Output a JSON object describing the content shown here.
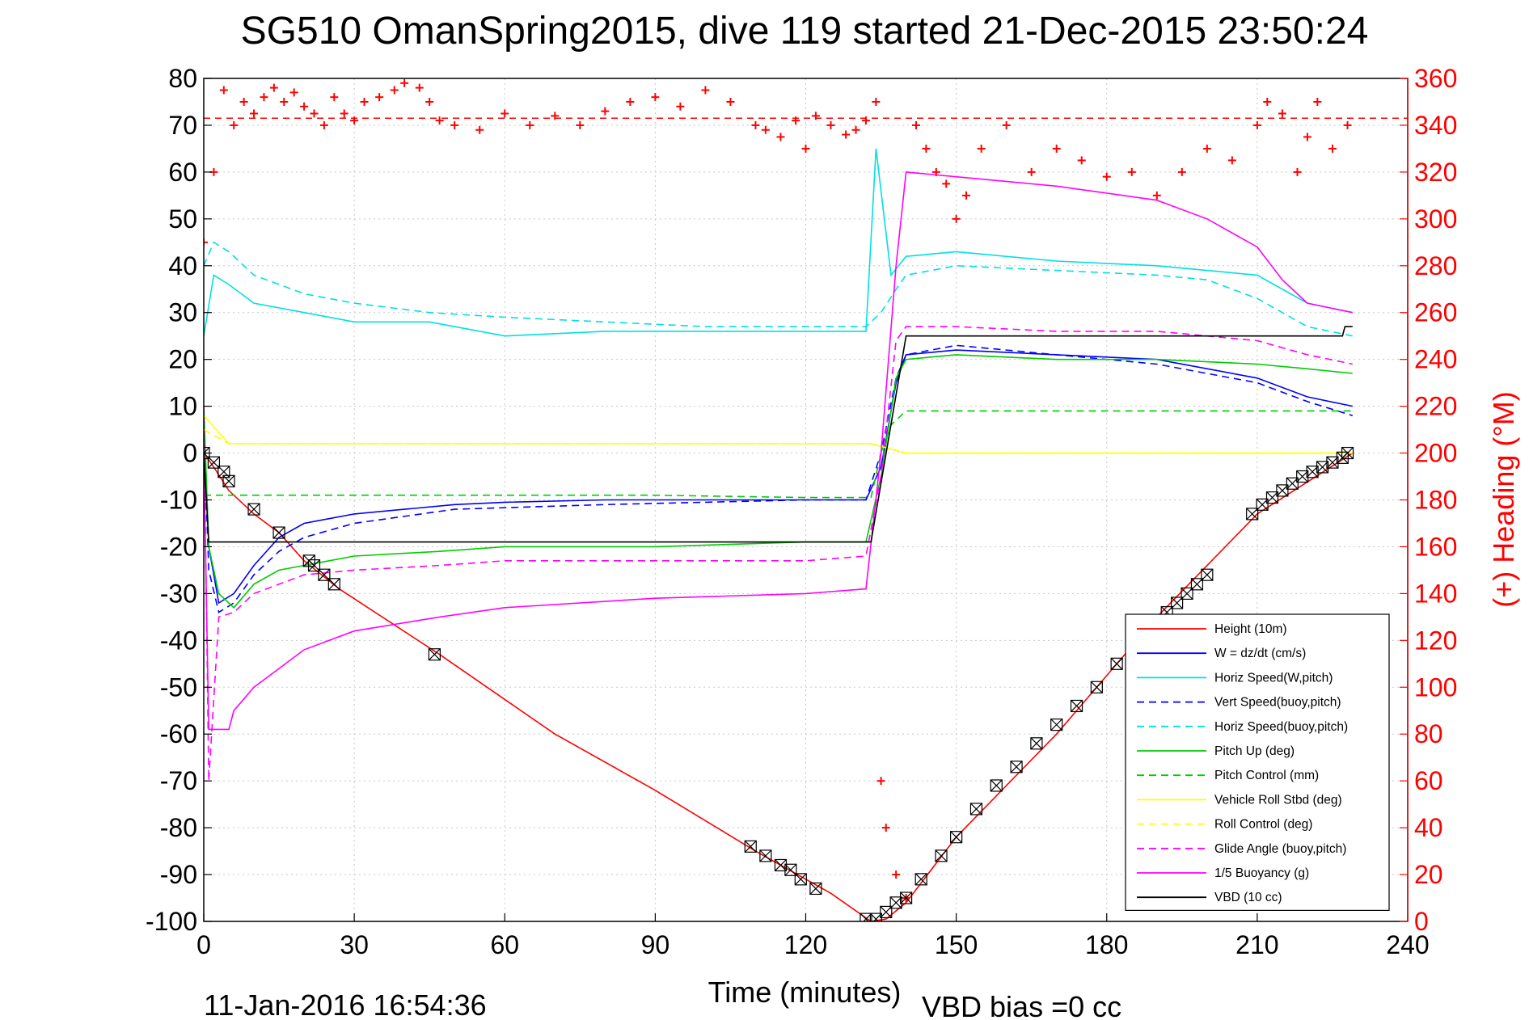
{
  "chart_data": {
    "type": "line",
    "title": "SG510 OmanSpring2015, dive 119 started 21-Dec-2015 23:50:24",
    "xlabel": "Time (minutes)",
    "ylabel": "",
    "y2label": "(+) Heading (°M)",
    "footer_left": "11-Jan-2016 16:54:36",
    "footer_right": "VBD bias =0 cc",
    "xlim": [
      0,
      240
    ],
    "ylim": [
      -100,
      80
    ],
    "y2lim": [
      0,
      360
    ],
    "x_ticks": [
      0,
      30,
      60,
      90,
      120,
      150,
      180,
      210,
      240
    ],
    "y_ticks": [
      80,
      70,
      60,
      50,
      40,
      30,
      20,
      10,
      0,
      -10,
      -20,
      -30,
      -40,
      -50,
      -60,
      -70,
      -80,
      -90,
      -100
    ],
    "y2_ticks": [
      360,
      340,
      320,
      300,
      280,
      260,
      240,
      220,
      200,
      180,
      160,
      140,
      120,
      100,
      80,
      60,
      40,
      20,
      0
    ],
    "grid": true,
    "legend_position": "lower-right",
    "colors": {
      "axes": "#000000",
      "heading_axis": "#ff0000",
      "heading_marker": "#ff0000",
      "grid": "#c8c8c8"
    },
    "series": [
      {
        "name": "Height (10m)",
        "color": "#ff0000",
        "style": "solid",
        "x": [
          0,
          2,
          5,
          10,
          15,
          20,
          27,
          47,
          70,
          90,
          110,
          125,
          133,
          136,
          140,
          150,
          170,
          190,
          210,
          229
        ],
        "y": [
          0,
          -3,
          -8,
          -13,
          -17,
          -23,
          -29,
          -43,
          -60,
          -72,
          -85,
          -94,
          -100,
          -99.5,
          -96,
          -82,
          -60,
          -35,
          -13,
          0
        ]
      },
      {
        "name": "W = dz/dt (cm/s)",
        "color": "#0000ff",
        "style": "solid",
        "x": [
          0,
          1,
          3,
          6,
          10,
          15,
          20,
          25,
          30,
          40,
          50,
          60,
          80,
          100,
          120,
          132,
          135,
          138,
          140,
          150,
          170,
          190,
          210,
          220,
          229
        ],
        "y": [
          8,
          -20,
          -32,
          -30,
          -24,
          -18,
          -15,
          -14,
          -13,
          -12,
          -11,
          -10.5,
          -10,
          -10,
          -10,
          -10,
          -3,
          15,
          21,
          22,
          21,
          20,
          16,
          12,
          10
        ]
      },
      {
        "name": "Horiz Speed(W,pitch)",
        "color": "#00e0e0",
        "style": "solid",
        "x": [
          0,
          2,
          5,
          10,
          20,
          30,
          45,
          60,
          80,
          100,
          120,
          132,
          134,
          137,
          140,
          150,
          170,
          190,
          210,
          220,
          229
        ],
        "y": [
          25,
          38,
          36,
          32,
          30,
          28,
          28,
          25,
          26,
          26,
          26,
          26,
          65,
          38,
          42,
          43,
          41,
          40,
          38,
          32,
          30
        ]
      },
      {
        "name": "Vert Speed(buoy,pitch)",
        "color": "#0000ff",
        "style": "dashed",
        "x": [
          0,
          1,
          3,
          6,
          10,
          15,
          20,
          30,
          50,
          80,
          120,
          132,
          135,
          138,
          140,
          150,
          170,
          190,
          210,
          220,
          229
        ],
        "y": [
          5,
          -25,
          -34,
          -32,
          -26,
          -21,
          -18,
          -15,
          -12,
          -11,
          -10,
          -10,
          0,
          16,
          21,
          23,
          21,
          19,
          15,
          11,
          8
        ]
      },
      {
        "name": "Horiz Speed(buoy,pitch)",
        "color": "#00e0e0",
        "style": "dashed",
        "x": [
          0,
          2,
          5,
          10,
          20,
          30,
          45,
          60,
          80,
          100,
          120,
          132,
          135,
          138,
          140,
          150,
          170,
          190,
          200,
          210,
          220,
          229
        ],
        "y": [
          40,
          45,
          43,
          38,
          34,
          32,
          30,
          29,
          28,
          27,
          27,
          27,
          30,
          35,
          38,
          40,
          39,
          38,
          37,
          33,
          27,
          25
        ]
      },
      {
        "name": "Pitch Up (deg)",
        "color": "#00cc00",
        "style": "solid",
        "x": [
          0,
          1,
          3,
          6,
          10,
          15,
          20,
          25,
          30,
          47,
          60,
          90,
          120,
          132,
          135,
          138,
          140,
          150,
          170,
          190,
          210,
          220,
          229
        ],
        "y": [
          10,
          -20,
          -30,
          -33,
          -28,
          -25,
          -24,
          -23,
          -22,
          -21,
          -20,
          -20,
          -19,
          -19,
          -5,
          16,
          20,
          21,
          20,
          20,
          19,
          18,
          17
        ]
      },
      {
        "name": "Pitch Control (mm)",
        "color": "#00cc00",
        "style": "dashed",
        "x": [
          0,
          1,
          30,
          60,
          90,
          120,
          133,
          135,
          137,
          140,
          229
        ],
        "y": [
          -9,
          -9,
          -9,
          -9,
          -9,
          -9.5,
          -9.5,
          0,
          6,
          9,
          9
        ]
      },
      {
        "name": "Vehicle Roll Stbd (deg)",
        "color": "#ffff00",
        "style": "solid",
        "x": [
          0,
          5,
          30,
          60,
          90,
          120,
          133,
          140,
          170,
          200,
          229
        ],
        "y": [
          8,
          2,
          2,
          2,
          2,
          2,
          2,
          0,
          0,
          0,
          0
        ]
      },
      {
        "name": "Roll Control (deg)",
        "color": "#ffff00",
        "style": "dashed",
        "x": [
          0,
          5,
          30,
          60,
          90,
          120,
          133,
          140,
          170,
          200,
          229
        ],
        "y": [
          5,
          2,
          2,
          2,
          2,
          2,
          2,
          0,
          0,
          0,
          0
        ]
      },
      {
        "name": "Glide Angle (buoy,pitch)",
        "color": "#ff00ff",
        "style": "dashed",
        "x": [
          0,
          1,
          3,
          6,
          10,
          15,
          20,
          30,
          47,
          60,
          90,
          120,
          132,
          135,
          138,
          140,
          150,
          170,
          190,
          210,
          220,
          229
        ],
        "y": [
          10,
          -70,
          -35,
          -34,
          -30,
          -28,
          -26,
          -25,
          -24,
          -23,
          -23,
          -23,
          -22,
          -5,
          24,
          27,
          27,
          26,
          26,
          24,
          21,
          19
        ]
      },
      {
        "name": "1/5 Buoyancy (g)",
        "color": "#ff00ff",
        "style": "solid",
        "x": [
          0,
          1,
          5,
          6,
          10,
          15,
          20,
          30,
          47,
          60,
          90,
          120,
          132,
          135,
          138,
          140,
          150,
          170,
          190,
          200,
          210,
          215,
          220,
          229
        ],
        "y": [
          0,
          -59,
          -59,
          -55,
          -50,
          -46,
          -42,
          -38,
          -35,
          -33,
          -31,
          -30,
          -29,
          0,
          40,
          60,
          59,
          57,
          54,
          50,
          44,
          37,
          32,
          30
        ]
      },
      {
        "name": "VBD (10 cc)",
        "color": "#000000",
        "style": "solid",
        "x": [
          0,
          1,
          2,
          30,
          60,
          90,
          120,
          133,
          140,
          200,
          227,
          227.5,
          229
        ],
        "y": [
          0,
          -19,
          -19,
          -19,
          -19,
          -19,
          -19,
          -19,
          25,
          25,
          25,
          27,
          27
        ]
      }
    ],
    "heading_series": {
      "name": "(+) Heading",
      "axis": "right",
      "marker": "+",
      "x": [
        0,
        2,
        4,
        6,
        8,
        10,
        12,
        14,
        16,
        18,
        20,
        22,
        24,
        26,
        28,
        30,
        32,
        35,
        38,
        40,
        43,
        45,
        47,
        50,
        55,
        60,
        65,
        70,
        75,
        80,
        85,
        90,
        95,
        100,
        105,
        110,
        112,
        115,
        118,
        120,
        122,
        125,
        128,
        130,
        132,
        134,
        135,
        136,
        138,
        140,
        142,
        144,
        146,
        148,
        150,
        152,
        155,
        160,
        165,
        170,
        175,
        180,
        185,
        190,
        195,
        200,
        205,
        210,
        212,
        215,
        218,
        220,
        222,
        225,
        228
      ],
      "y": [
        290,
        320,
        355,
        340,
        350,
        345,
        352,
        356,
        350,
        354,
        348,
        345,
        340,
        352,
        345,
        342,
        350,
        352,
        355,
        358,
        356,
        350,
        342,
        340,
        338,
        345,
        340,
        344,
        340,
        346,
        350,
        352,
        348,
        355,
        350,
        340,
        338,
        335,
        342,
        330,
        344,
        340,
        336,
        338,
        342,
        350,
        60,
        40,
        20,
        10,
        340,
        330,
        320,
        315,
        300,
        310,
        330,
        340,
        320,
        330,
        325,
        318,
        320,
        310,
        320,
        330,
        325,
        340,
        350,
        345,
        320,
        335,
        350,
        330,
        340
      ]
    },
    "height_markers": {
      "name": "Height markers",
      "marker": "box-x",
      "color": "#000000",
      "x": [
        0,
        2,
        4,
        5,
        10,
        15,
        21,
        22,
        24,
        26,
        46,
        109,
        112,
        115,
        117,
        119,
        122,
        132,
        134,
        136,
        138,
        140,
        143,
        147,
        150,
        154,
        158,
        162,
        166,
        170,
        174,
        178,
        182,
        186,
        190,
        192,
        194,
        196,
        198,
        200,
        209,
        211,
        213,
        215,
        217,
        219,
        221,
        223,
        225,
        227,
        228
      ],
      "y": [
        0,
        -2,
        -4,
        -6,
        -12,
        -17,
        -23,
        -24,
        -26,
        -28,
        -43,
        -84,
        -86,
        -88,
        -89,
        -91,
        -93,
        -99.5,
        -99.5,
        -98,
        -96,
        -95,
        -91,
        -86,
        -82,
        -76,
        -71,
        -67,
        -62,
        -58,
        -54,
        -50,
        -45,
        -41,
        -36,
        -34,
        -32,
        -30,
        -28,
        -26,
        -13,
        -11,
        -9.5,
        -8,
        -6.5,
        -5,
        -4,
        -3,
        -2,
        -1,
        0
      ]
    }
  }
}
